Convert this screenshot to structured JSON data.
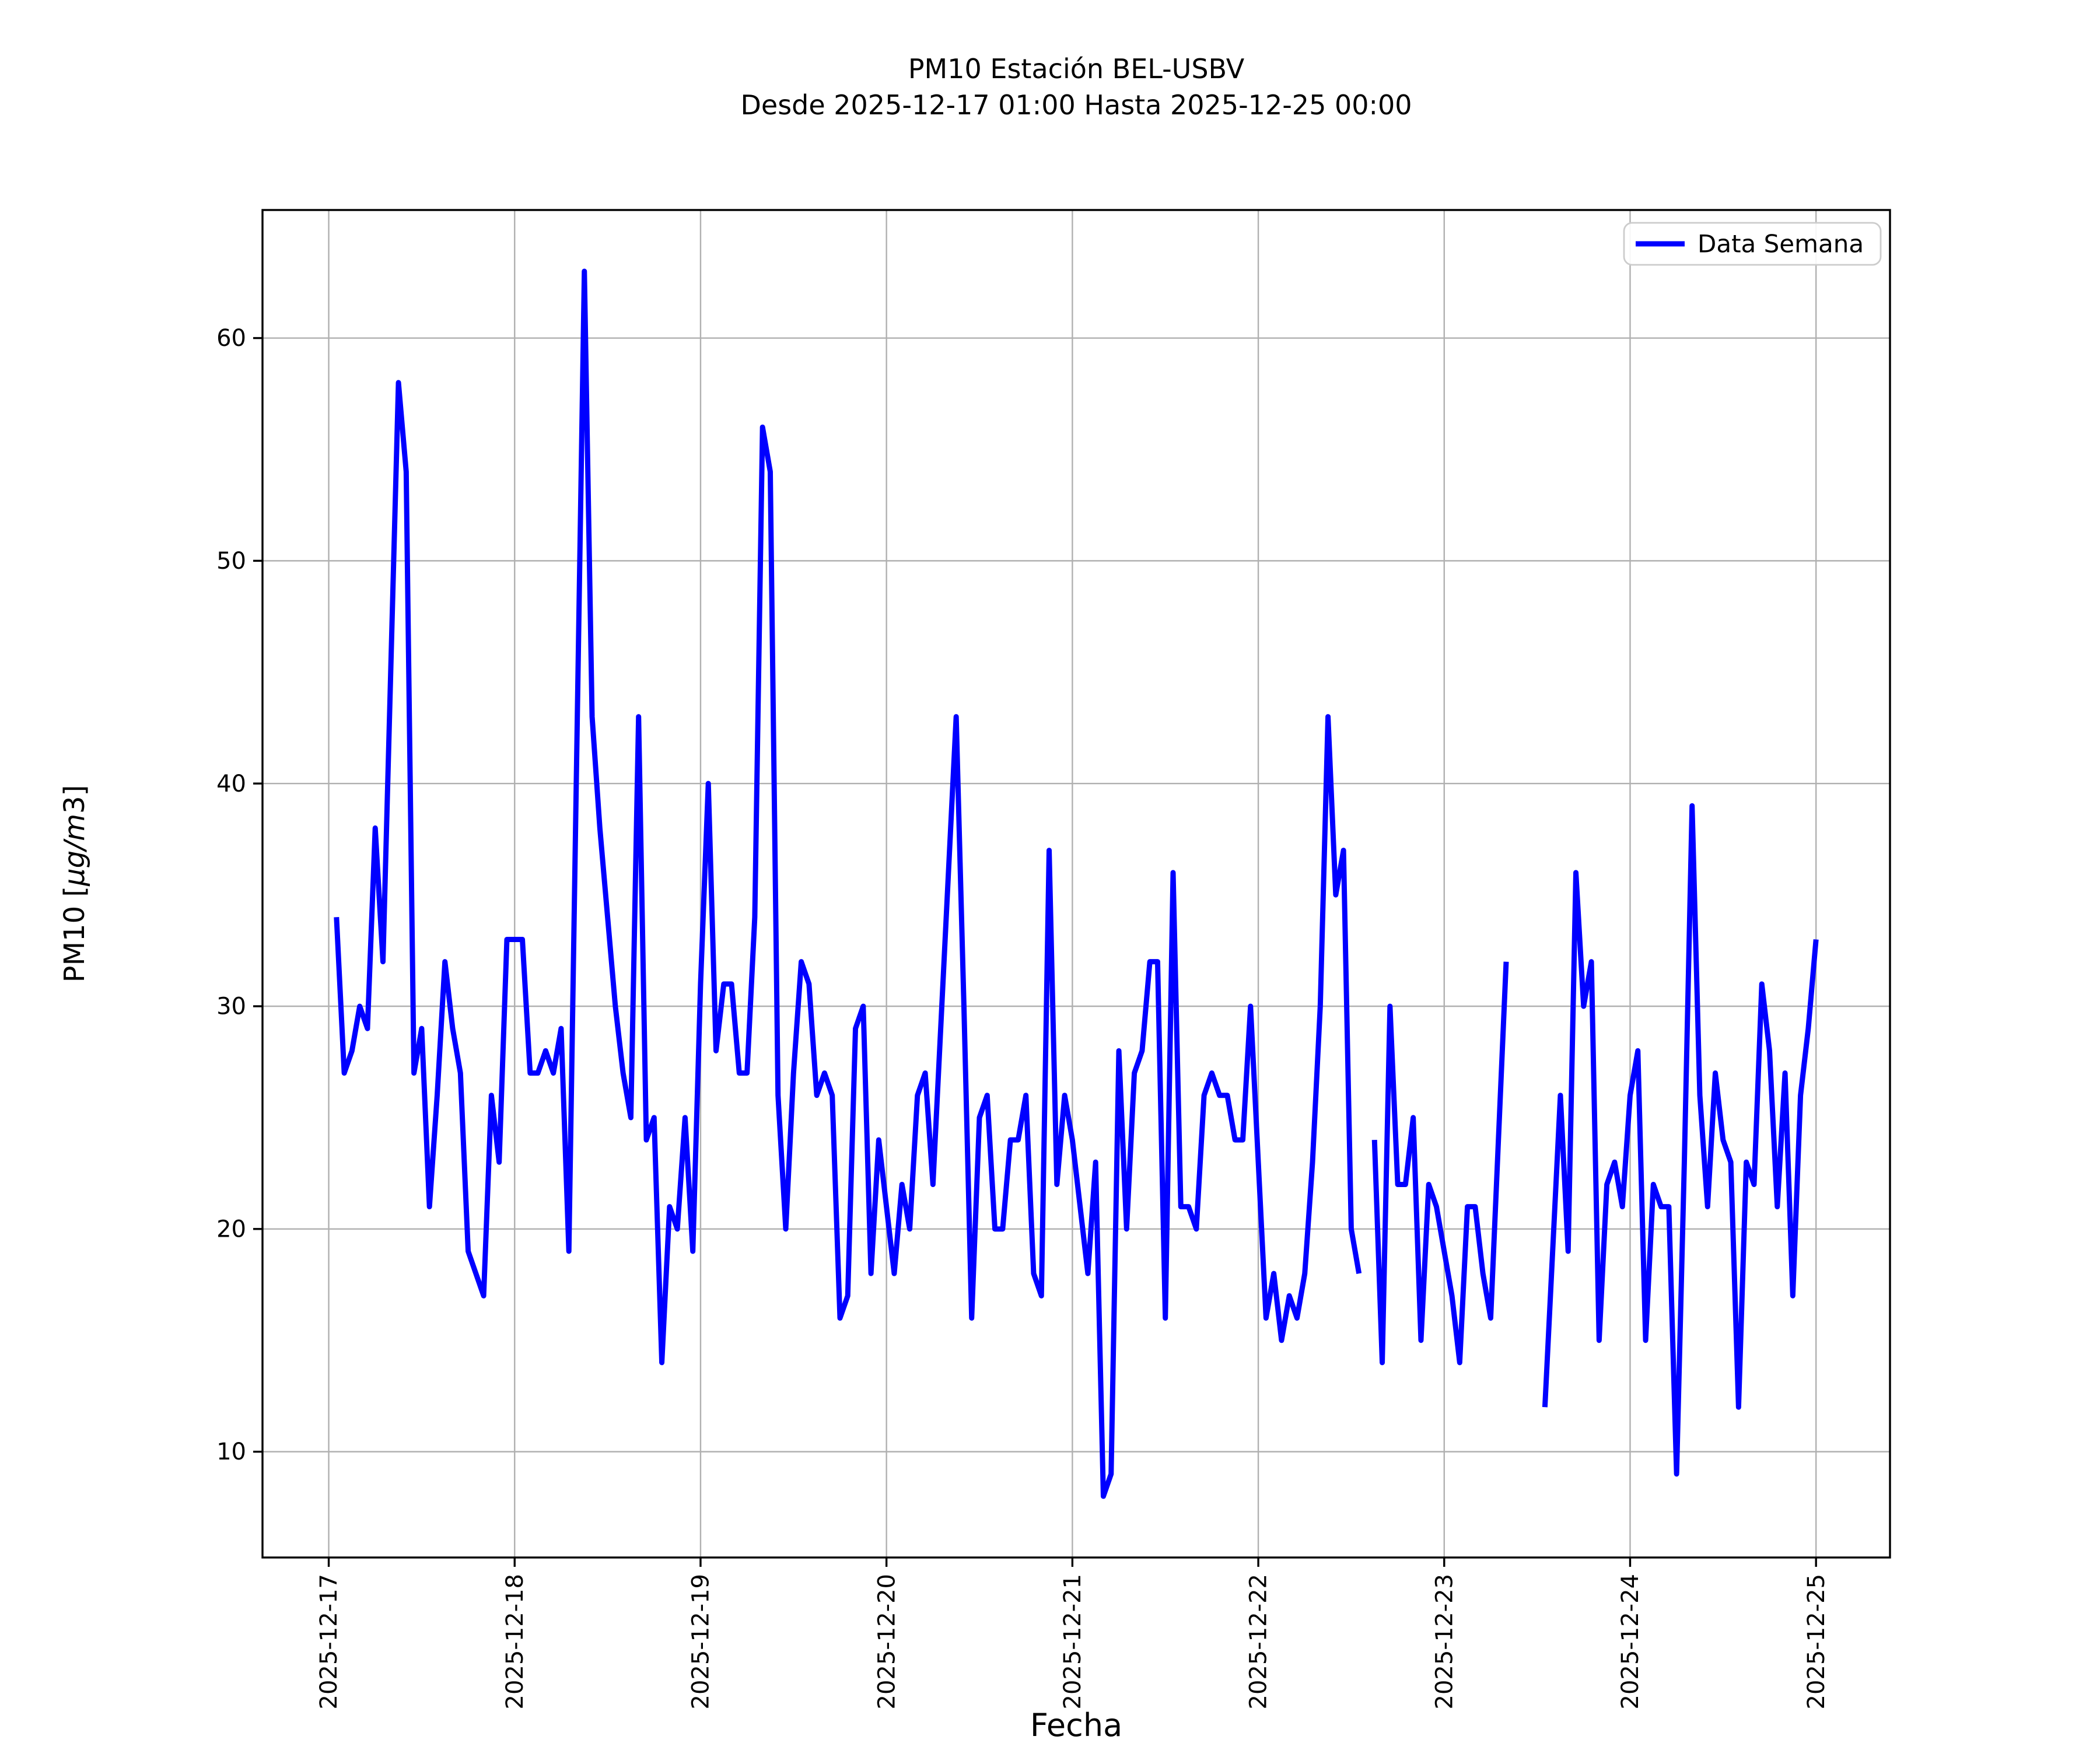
{
  "title": {
    "line1": "PM10 Estación BEL-USBV",
    "line2": "Desde 2025-12-17 01:00 Hasta 2025-12-25 00:00"
  },
  "legend": {
    "label": "Data Semana"
  },
  "axis": {
    "xlabel": "Fecha",
    "ylabel_prefix": "PM10 [",
    "ylabel_italic": "µg/m",
    "ylabel_suffix": "3]"
  },
  "colors": {
    "line": "#0000ff",
    "grid": "#b0b0b0",
    "axis": "#000000",
    "background": "#ffffff",
    "legend_border": "#cccccc"
  },
  "chart_data": {
    "type": "line",
    "title": "PM10 Estación BEL-USBV\nDesde 2025-12-17 01:00 Hasta 2025-12-25 00:00",
    "xlabel": "Fecha",
    "ylabel": "PM10 [µg/m3]",
    "grid": true,
    "legend_position": "upper right",
    "x_start": "2025-12-17 01:00",
    "x_step_hours": 1,
    "x_end": "2025-12-25 00:00",
    "xlim_hours": [
      -8.55,
      201.55
    ],
    "ylim": [
      5.25,
      65.75
    ],
    "y_ticks": [
      10,
      20,
      30,
      40,
      50,
      60
    ],
    "x_ticks_hours": [
      0,
      24,
      48,
      72,
      96,
      120,
      144,
      168,
      192
    ],
    "x_tick_labels": [
      "2025-12-17",
      "2025-12-18",
      "2025-12-19",
      "2025-12-20",
      "2025-12-21",
      "2025-12-22",
      "2025-12-23",
      "2025-12-24",
      "2025-12-25"
    ],
    "series": [
      {
        "name": "Data Semana",
        "color": "#0000ff",
        "first_point_hour_offset": 1,
        "values": [
          34,
          27,
          28,
          30,
          29,
          38,
          32,
          45,
          58,
          54,
          27,
          29,
          21,
          26,
          32,
          29,
          27,
          19,
          18,
          17,
          26,
          23,
          33,
          33,
          33,
          27,
          27,
          28,
          27,
          29,
          19,
          41,
          63,
          43,
          38,
          34,
          30,
          27,
          25,
          43,
          24,
          25,
          14,
          21,
          20,
          25,
          19,
          31,
          40,
          28,
          31,
          31,
          27,
          27,
          34,
          56,
          54,
          26,
          20,
          27,
          32,
          31,
          26,
          27,
          26,
          16,
          17,
          29,
          30,
          18,
          24,
          21,
          18,
          22,
          20,
          26,
          27,
          22,
          29,
          36,
          43,
          30,
          16,
          25,
          26,
          20,
          20,
          24,
          24,
          26,
          18,
          17,
          37,
          22,
          26,
          24,
          21,
          18,
          23,
          8,
          9,
          28,
          20,
          27,
          28,
          32,
          32,
          16,
          36,
          21,
          21,
          20,
          26,
          27,
          26,
          26,
          24,
          24,
          30,
          23,
          16,
          18,
          15,
          17,
          16,
          18,
          23,
          30,
          43,
          35,
          37,
          20,
          18,
          null,
          24,
          14,
          30,
          22,
          22,
          25,
          15,
          22,
          21,
          19,
          17,
          14,
          21,
          21,
          18,
          16,
          24,
          32,
          null,
          null,
          null,
          null,
          12,
          19,
          26,
          19,
          36,
          30,
          32,
          15,
          22,
          23,
          21,
          26,
          28,
          15,
          22,
          21,
          21,
          9,
          23,
          39,
          26,
          21,
          27,
          24,
          23,
          12,
          23,
          22,
          31,
          28,
          21,
          27,
          17,
          26,
          29,
          33
        ]
      }
    ]
  }
}
